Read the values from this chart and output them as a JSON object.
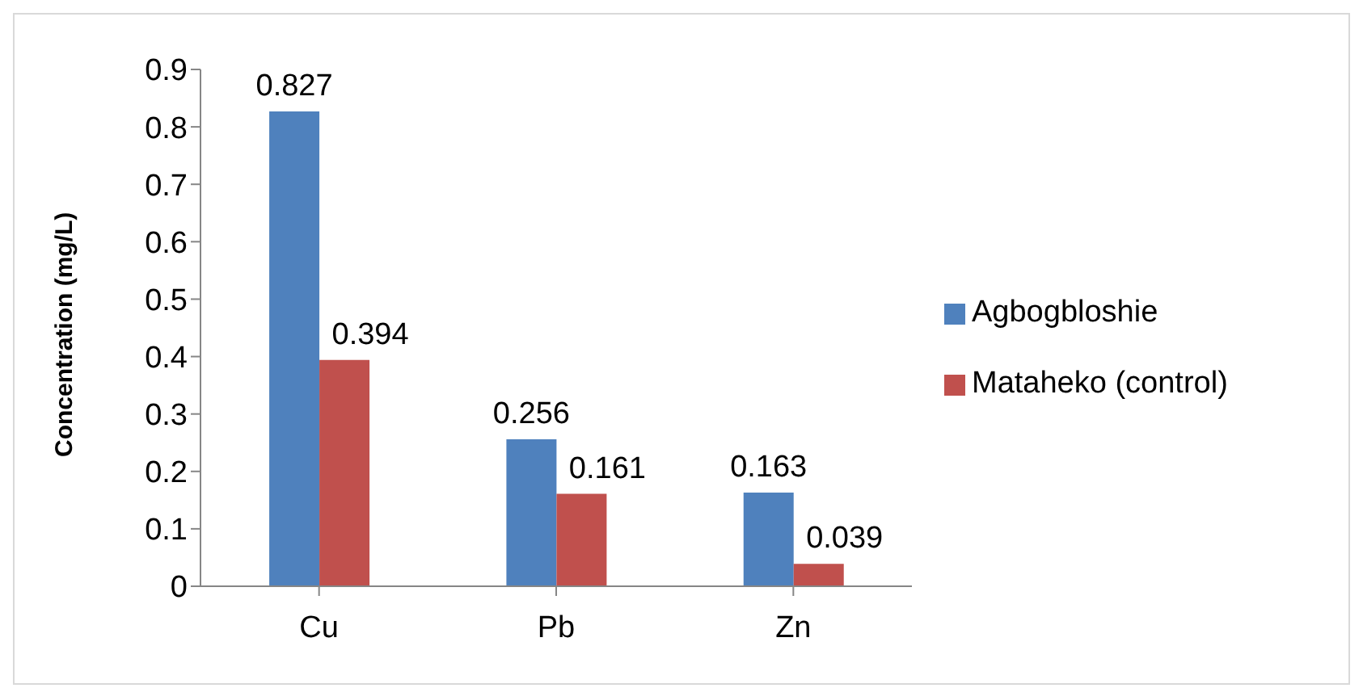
{
  "chart_data": {
    "type": "bar",
    "ylabel": "Concentration (mg/L)",
    "categories": [
      "Cu",
      "Pb",
      "Zn"
    ],
    "series": [
      {
        "name": "Agbogbloshie",
        "color": "#4f81bd",
        "values": [
          0.827,
          0.256,
          0.163
        ]
      },
      {
        "name": "Mataheko (control)",
        "color": "#c0504d",
        "values": [
          0.394,
          0.161,
          0.039
        ]
      }
    ],
    "ylim": [
      0,
      0.9
    ],
    "yticks": [
      0,
      0.1,
      0.2,
      0.3,
      0.4,
      0.5,
      0.6,
      0.7,
      0.8,
      0.9
    ],
    "grid": false,
    "legend": "right",
    "data_labels": true
  }
}
